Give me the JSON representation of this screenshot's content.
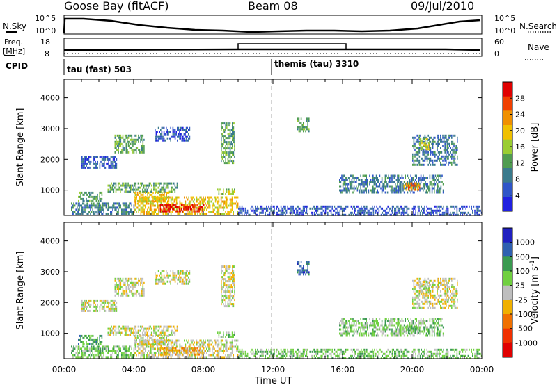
{
  "header": {
    "station": "Goose Bay (fitACF)",
    "beam": "Beam 08",
    "date": "09/Jul/2010"
  },
  "side_labels": {
    "nsky": "N.Sky",
    "nsearch": "N.Search",
    "freq": "Freq.",
    "freq_unit": "[MHz]",
    "nave": "Nave",
    "cpid": "CPID"
  },
  "noise_panel": {
    "ytick_top": "10^5",
    "ytick_bottom": "10^0",
    "rtick_top": "10^5",
    "rtick_bottom": "10^0"
  },
  "freq_panel": {
    "ytick_top": "18",
    "ytick_bottom": "8",
    "rtick_top": "60",
    "rtick_bottom": "0"
  },
  "cpid_panel": {
    "label_left": "tau (fast) 503",
    "label_right": "themis (tau) 3310",
    "switch_hour": 12
  },
  "chart_data": [
    {
      "type": "heatmap",
      "title": "",
      "xlabel": "",
      "ylabel": "Slant Range [km]",
      "xlim_hours": [
        0,
        24
      ],
      "ylim": [
        180,
        4600
      ],
      "colorbar_label": "Power [dB]",
      "colorbar_ticks": [
        "28",
        "24",
        "20",
        "16",
        "12",
        "8",
        "4"
      ],
      "colors": [
        "#2020e0",
        "#2f55c8",
        "#3a7a8c",
        "#4f9c50",
        "#9acd32",
        "#f0c000",
        "#f09000",
        "#f04000",
        "#e00000"
      ],
      "blobs": [
        {
          "t0": 0.4,
          "t1": 4.0,
          "r0": 200,
          "r1": 600,
          "level": 2
        },
        {
          "t0": 4.0,
          "t1": 10.0,
          "r0": 200,
          "r1": 800,
          "level": 5
        },
        {
          "t0": 5.5,
          "t1": 8.0,
          "r0": 300,
          "r1": 550,
          "level": 8
        },
        {
          "t0": 10.0,
          "t1": 24.0,
          "r0": 200,
          "r1": 500,
          "level": 1
        },
        {
          "t0": 0.8,
          "t1": 2.2,
          "r0": 650,
          "r1": 950,
          "level": 3
        },
        {
          "t0": 2.5,
          "t1": 6.5,
          "r0": 950,
          "r1": 1250,
          "level": 3
        },
        {
          "t0": 4.0,
          "t1": 6.0,
          "r0": 650,
          "r1": 950,
          "level": 5
        },
        {
          "t0": 8.8,
          "t1": 9.8,
          "r0": 850,
          "r1": 1050,
          "level": 4
        },
        {
          "t0": 1.0,
          "t1": 3.0,
          "r0": 1700,
          "r1": 2100,
          "level": 1
        },
        {
          "t0": 2.9,
          "t1": 4.6,
          "r0": 2200,
          "r1": 2800,
          "level": 3
        },
        {
          "t0": 5.2,
          "t1": 7.2,
          "r0": 2600,
          "r1": 3050,
          "level": 1
        },
        {
          "t0": 9.0,
          "t1": 9.8,
          "r0": 1900,
          "r1": 3200,
          "level": 3
        },
        {
          "t0": 13.4,
          "t1": 14.1,
          "r0": 2900,
          "r1": 3350,
          "level": 3
        },
        {
          "t0": 15.8,
          "t1": 21.8,
          "r0": 900,
          "r1": 1500,
          "level": 2
        },
        {
          "t0": 19.5,
          "t1": 20.5,
          "r0": 1000,
          "r1": 1250,
          "level": 6
        },
        {
          "t0": 20.0,
          "t1": 22.6,
          "r0": 1800,
          "r1": 2800,
          "level": 2
        },
        {
          "t0": 20.4,
          "t1": 21.0,
          "r0": 2300,
          "r1": 2700,
          "level": 4
        }
      ]
    },
    {
      "type": "heatmap",
      "title": "",
      "xlabel": "Time UT",
      "ylabel": "Slant Range [km]",
      "xlim_hours": [
        0,
        24
      ],
      "ylim": [
        180,
        4600
      ],
      "colorbar_label": "Velocity [m s^-1]",
      "colorbar_ticks": [
        "1000",
        "500",
        "100",
        "25",
        "-25",
        "-100",
        "-500",
        "-1000"
      ],
      "colors": [
        "#e00000",
        "#f03000",
        "#f07000",
        "#f0b000",
        "#bebebe",
        "#70d040",
        "#3a9a50",
        "#2f60b0",
        "#2020c0"
      ],
      "blobs": [
        {
          "t0": 0.4,
          "t1": 4.0,
          "r0": 200,
          "r1": 600,
          "level": 5
        },
        {
          "t0": 4.0,
          "t1": 10.0,
          "r0": 200,
          "r1": 800,
          "level": 4
        },
        {
          "t0": 5.5,
          "t1": 8.0,
          "r0": 300,
          "r1": 550,
          "level": 3
        },
        {
          "t0": 10.0,
          "t1": 24.0,
          "r0": 200,
          "r1": 500,
          "level": 5
        },
        {
          "t0": 0.8,
          "t1": 2.2,
          "r0": 650,
          "r1": 950,
          "level": 6
        },
        {
          "t0": 2.5,
          "t1": 6.5,
          "r0": 950,
          "r1": 1250,
          "level": 4
        },
        {
          "t0": 4.0,
          "t1": 6.0,
          "r0": 650,
          "r1": 950,
          "level": 4
        },
        {
          "t0": 8.8,
          "t1": 9.8,
          "r0": 850,
          "r1": 1050,
          "level": 5
        },
        {
          "t0": 1.0,
          "t1": 3.0,
          "r0": 1700,
          "r1": 2100,
          "level": 4
        },
        {
          "t0": 2.9,
          "t1": 4.6,
          "r0": 2200,
          "r1": 2800,
          "level": 4
        },
        {
          "t0": 5.2,
          "t1": 7.2,
          "r0": 2600,
          "r1": 3050,
          "level": 4
        },
        {
          "t0": 9.0,
          "t1": 9.8,
          "r0": 1900,
          "r1": 3200,
          "level": 4
        },
        {
          "t0": 13.4,
          "t1": 14.1,
          "r0": 2900,
          "r1": 3350,
          "level": 7
        },
        {
          "t0": 15.8,
          "t1": 21.8,
          "r0": 900,
          "r1": 1500,
          "level": 5
        },
        {
          "t0": 19.5,
          "t1": 20.5,
          "r0": 1000,
          "r1": 1250,
          "level": 5
        },
        {
          "t0": 20.0,
          "t1": 22.6,
          "r0": 1800,
          "r1": 2800,
          "level": 4
        },
        {
          "t0": 20.4,
          "t1": 21.0,
          "r0": 2300,
          "r1": 2700,
          "level": 4
        }
      ]
    }
  ],
  "axis": {
    "time_ticks": [
      "00:00",
      "04:00",
      "08:00",
      "12:00",
      "16:00",
      "20:00",
      "00:00"
    ],
    "range_ticks": [
      "1000",
      "2000",
      "3000",
      "4000"
    ],
    "range_values": [
      1000,
      2000,
      3000,
      4000
    ]
  }
}
